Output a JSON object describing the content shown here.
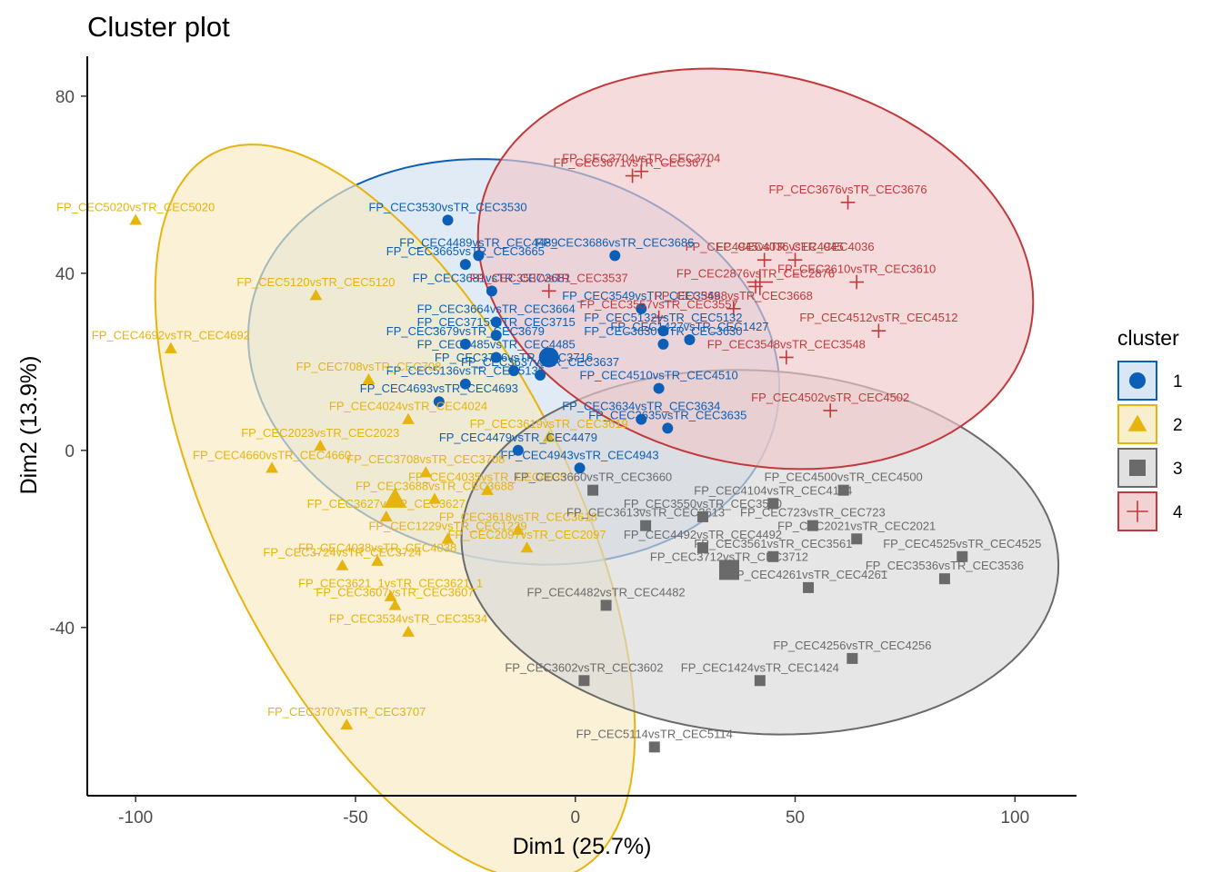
{
  "chart_data": {
    "type": "scatter",
    "title": "Cluster plot",
    "xlabel": "Dim1 (25.7%)",
    "ylabel": "Dim2 (13.9%)",
    "xlim": [
      -111,
      114
    ],
    "ylim": [
      -78,
      89
    ],
    "xticks": [
      -100,
      -50,
      0,
      50,
      100
    ],
    "yticks": [
      -40,
      0,
      40,
      80
    ],
    "grid": false,
    "legend": {
      "title": "cluster",
      "position": "right",
      "entries": [
        "1",
        "2",
        "3",
        "4"
      ]
    },
    "colors": {
      "1": "#0b5fb6",
      "2": "#e7b30d",
      "3": "#6a6a6a",
      "4": "#c2393b"
    },
    "ellipses": [
      {
        "cluster": "1",
        "cx": -14,
        "cy": 20,
        "rx": 61,
        "ry": 45,
        "angle_deg": -12
      },
      {
        "cluster": "2",
        "cx": -41,
        "cy": -14,
        "rx": 91,
        "ry": 40,
        "angle_deg": -63
      },
      {
        "cluster": "3",
        "cx": 42,
        "cy": -23,
        "rx": 68,
        "ry": 41,
        "angle_deg": -4
      },
      {
        "cluster": "4",
        "cx": 41,
        "cy": 41,
        "rx": 64,
        "ry": 44,
        "angle_deg": -13
      }
    ],
    "centers": [
      {
        "cluster": "1",
        "x": -6,
        "y": 21
      },
      {
        "cluster": "2",
        "x": -41,
        "y": -11
      },
      {
        "cluster": "3",
        "x": 35,
        "y": -27
      },
      {
        "cluster": "4",
        "x": 42,
        "y": 38
      }
    ],
    "points": [
      {
        "label": "FP_CEC3530vsTR_CEC3530",
        "x": -29,
        "y": 52,
        "cluster": "1"
      },
      {
        "label": "FP_CEC4489vsTR_CEC4489",
        "x": -22,
        "y": 44,
        "cluster": "1"
      },
      {
        "label": "FP_CEC3686vsTR_CEC3686",
        "x": 9,
        "y": 44,
        "cluster": "1"
      },
      {
        "label": "FP_CEC3665vsTR_CEC3665",
        "x": -25,
        "y": 42,
        "cluster": "1"
      },
      {
        "label": "FP_CEC3681vsTR_CEC3681",
        "x": -19,
        "y": 36,
        "cluster": "1"
      },
      {
        "label": "FP_CEC3549vsTR_CEC3549",
        "x": 15,
        "y": 32,
        "cluster": "1"
      },
      {
        "label": "FP_CEC3664vsTR_CEC3664",
        "x": -18,
        "y": 29,
        "cluster": "1"
      },
      {
        "label": "FP_CEC3715vsTR_CEC3715",
        "x": -18,
        "y": 26,
        "cluster": "1"
      },
      {
        "label": "FP_CEC5132vsTR_CEC5132",
        "x": 20,
        "y": 27,
        "cluster": "1"
      },
      {
        "label": "FP_CEC3679vsTR_CEC3679",
        "x": -25,
        "y": 24,
        "cluster": "1"
      },
      {
        "label": "FP_CEC3630vsTR_CEC3630",
        "x": 20,
        "y": 24,
        "cluster": "1"
      },
      {
        "label": "FP_CEC1427vsTR_CEC1427",
        "x": 26,
        "y": 25,
        "cluster": "1"
      },
      {
        "label": "FP_CEC4485vsTR_CEC4485",
        "x": -18,
        "y": 21,
        "cluster": "1"
      },
      {
        "label": "FP_CEC3716vsTR_CEC3716",
        "x": -14,
        "y": 18,
        "cluster": "1"
      },
      {
        "label": "FP_CEC3637vsTR_CEC3637",
        "x": -8,
        "y": 17,
        "cluster": "1"
      },
      {
        "label": "FP_CEC4510vsTR_CEC4510",
        "x": 19,
        "y": 14,
        "cluster": "1"
      },
      {
        "label": "FP_CEC5136vsTR_CEC5136",
        "x": -25,
        "y": 15,
        "cluster": "1"
      },
      {
        "label": "FP_CEC4693vsTR_CEC4693",
        "x": -31,
        "y": 11,
        "cluster": "1"
      },
      {
        "label": "FP_CEC3634vsTR_CEC3634",
        "x": 15,
        "y": 7,
        "cluster": "1"
      },
      {
        "label": "FP_CEC3635vsTR_CEC3635",
        "x": 21,
        "y": 5,
        "cluster": "1"
      },
      {
        "label": "FP_CEC4479vsTR_CEC4479",
        "x": -13,
        "y": 0,
        "cluster": "1"
      },
      {
        "label": "FP_CEC4943vsTR_CEC4943",
        "x": 1,
        "y": -4,
        "cluster": "1"
      },
      {
        "label": "FP_CEC5020vsTR_CEC5020",
        "x": -100,
        "y": 52,
        "cluster": "2"
      },
      {
        "label": "FP_CEC5120vsTR_CEC5120",
        "x": -59,
        "y": 35,
        "cluster": "2"
      },
      {
        "label": "FP_CEC4692vsTR_CEC4692",
        "x": -92,
        "y": 23,
        "cluster": "2"
      },
      {
        "label": "FP_CEC708vsTR_CEC708",
        "x": -47,
        "y": 16,
        "cluster": "2"
      },
      {
        "label": "FP_CEC4024vsTR_CEC4024",
        "x": -38,
        "y": 7,
        "cluster": "2"
      },
      {
        "label": "FP_CEC3619vsTR_CEC3619",
        "x": -6,
        "y": 3,
        "cluster": "2"
      },
      {
        "label": "FP_CEC2023vsTR_CEC2023",
        "x": -58,
        "y": 1,
        "cluster": "2"
      },
      {
        "label": "FP_CEC4660vsTR_CEC4660",
        "x": -69,
        "y": -4,
        "cluster": "2"
      },
      {
        "label": "FP_CEC3708vsTR_CEC3708",
        "x": -34,
        "y": -5,
        "cluster": "2"
      },
      {
        "label": "FP_CEC4035vsTR_CEC4035",
        "x": -20,
        "y": -9,
        "cluster": "2"
      },
      {
        "label": "FP_CEC3688vsTR_CEC3688",
        "x": -32,
        "y": -11,
        "cluster": "2"
      },
      {
        "label": "FP_CEC3627vsTR_CEC3627",
        "x": -43,
        "y": -15,
        "cluster": "2"
      },
      {
        "label": "FP_CEC3618vsTR_CEC3618",
        "x": -13,
        "y": -18,
        "cluster": "2"
      },
      {
        "label": "FP_CEC1229vsTR_CEC1229",
        "x": -29,
        "y": -20,
        "cluster": "2"
      },
      {
        "label": "FP_CEC2097vsTR_CEC2097",
        "x": -11,
        "y": -22,
        "cluster": "2"
      },
      {
        "label": "FP_CEC4038vsTR_CEC4038",
        "x": -45,
        "y": -25,
        "cluster": "2"
      },
      {
        "label": "FP_CEC3724vsTR_CEC3724",
        "x": -53,
        "y": -26,
        "cluster": "2"
      },
      {
        "label": "FP_CEC3621_1vsTR_CEC3621_1",
        "x": -42,
        "y": -33,
        "cluster": "2"
      },
      {
        "label": "FP_CEC3607vsTR_CEC3607",
        "x": -41,
        "y": -35,
        "cluster": "2"
      },
      {
        "label": "FP_CEC3534vsTR_CEC3534",
        "x": -38,
        "y": -41,
        "cluster": "2"
      },
      {
        "label": "FP_CEC3707vsTR_CEC3707",
        "x": -52,
        "y": -62,
        "cluster": "2"
      },
      {
        "label": "FP_CEC3660vsTR_CEC3660",
        "x": 4,
        "y": -9,
        "cluster": "3"
      },
      {
        "label": "FP_CEC4500vsTR_CEC4500",
        "x": 61,
        "y": -9,
        "cluster": "3"
      },
      {
        "label": "FP_CEC4104vsTR_CEC4104",
        "x": 45,
        "y": -12,
        "cluster": "3"
      },
      {
        "label": "FP_CEC3550vsTR_CEC3550",
        "x": 29,
        "y": -15,
        "cluster": "3"
      },
      {
        "label": "FP_CEC2021vsTR_CEC2021",
        "x": 64,
        "y": -20,
        "cluster": "3"
      },
      {
        "label": "FP_CEC723vsTR_CEC723",
        "x": 54,
        "y": -17,
        "cluster": "3"
      },
      {
        "label": "FP_CEC3613vsTR_CEC3613",
        "x": 16,
        "y": -17,
        "cluster": "3"
      },
      {
        "label": "FP_CEC3561vsTR_CEC3561",
        "x": 45,
        "y": -24,
        "cluster": "3"
      },
      {
        "label": "FP_CEC4492vsTR_CEC4492",
        "x": 29,
        "y": -22,
        "cluster": "3"
      },
      {
        "label": "FP_CEC4525vsTR_CEC4525",
        "x": 88,
        "y": -24,
        "cluster": "3"
      },
      {
        "label": "FP_CEC3712vsTR_CEC3712",
        "x": 35,
        "y": -27,
        "cluster": "3"
      },
      {
        "label": "FP_CEC3536vsTR_CEC3536",
        "x": 84,
        "y": -29,
        "cluster": "3"
      },
      {
        "label": "FP_CEC4261vsTR_CEC4261",
        "x": 53,
        "y": -31,
        "cluster": "3"
      },
      {
        "label": "FP_CEC4482vsTR_CEC4482",
        "x": 7,
        "y": -35,
        "cluster": "3"
      },
      {
        "label": "FP_CEC4256vsTR_CEC4256",
        "x": 63,
        "y": -47,
        "cluster": "3"
      },
      {
        "label": "FP_CEC3602vsTR_CEC3602",
        "x": 2,
        "y": -52,
        "cluster": "3"
      },
      {
        "label": "FP_CEC1424vsTR_CEC1424",
        "x": 42,
        "y": -52,
        "cluster": "3"
      },
      {
        "label": "FP_CEC5114vsTR_CEC5114",
        "x": 18,
        "y": -67,
        "cluster": "3"
      },
      {
        "label": "FP_CEC3671vsTR_CEC3671",
        "x": 13,
        "y": 62,
        "cluster": "4"
      },
      {
        "label": "FP_CEC3704vsTR_CEC3704",
        "x": 15,
        "y": 63,
        "cluster": "4"
      },
      {
        "label": "FP_CEC3676vsTR_CEC3676",
        "x": 62,
        "y": 56,
        "cluster": "4"
      },
      {
        "label": "FP_CEC4945vsTR_CEC4945",
        "x": 43,
        "y": 43,
        "cluster": "4"
      },
      {
        "label": "FP_CEC4036vsTR_CEC4036",
        "x": 50,
        "y": 43,
        "cluster": "4"
      },
      {
        "label": "FP_CEC3610vsTR_CEC3610",
        "x": 64,
        "y": 38,
        "cluster": "4"
      },
      {
        "label": "FP_CEC3537vsTR_CEC3537",
        "x": -6,
        "y": 36,
        "cluster": "4"
      },
      {
        "label": "FP_CEC2876vsTR_CEC2876",
        "x": 41,
        "y": 37,
        "cluster": "4"
      },
      {
        "label": "FP_CEC3668vsTR_CEC3668",
        "x": 36,
        "y": 32,
        "cluster": "4"
      },
      {
        "label": "FP_CEC3557vsTR_CEC3557",
        "x": 19,
        "y": 30,
        "cluster": "4"
      },
      {
        "label": "FP_CEC4512vsTR_CEC4512",
        "x": 69,
        "y": 27,
        "cluster": "4"
      },
      {
        "label": "FP_CEC3548vsTR_CEC3548",
        "x": 48,
        "y": 21,
        "cluster": "4"
      },
      {
        "label": "FP_CEC4502vsTR_CEC4502",
        "x": 58,
        "y": 9,
        "cluster": "4"
      }
    ]
  }
}
